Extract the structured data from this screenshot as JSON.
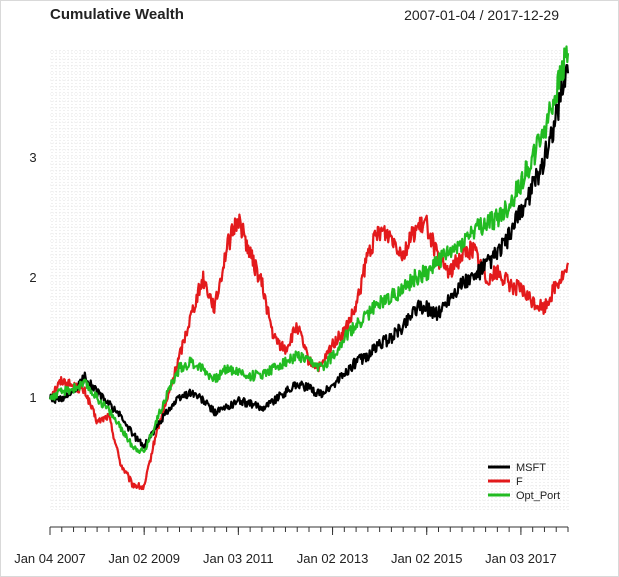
{
  "chart_data": {
    "type": "line",
    "title": "Cumulative Wealth",
    "date_range": "2007-01-04 / 2017-12-29",
    "x_start": 2007.0,
    "x_end": 2018.0,
    "ylim": [
      0.05,
      3.9
    ],
    "y_ticks": [
      1,
      2,
      3
    ],
    "y_tick_labels": [
      "1",
      "2",
      "3"
    ],
    "x_ticks": [
      2007.0,
      2009.0,
      2011.0,
      2013.0,
      2015.0,
      2017.0
    ],
    "x_tick_labels": [
      "Jan 04 2007",
      "Jan 02 2009",
      "Jan 03 2011",
      "Jan 02 2013",
      "Jan 02 2015",
      "Jan 03 2017"
    ],
    "legend_position": "bottom-right",
    "grid": true,
    "series": [
      {
        "name": "F",
        "color": "#e31a1c",
        "x": [
          2007.0,
          2007.25,
          2007.5,
          2007.75,
          2008.0,
          2008.25,
          2008.5,
          2008.75,
          2009.0,
          2009.25,
          2009.5,
          2009.75,
          2010.0,
          2010.25,
          2010.5,
          2010.75,
          2011.0,
          2011.25,
          2011.5,
          2011.75,
          2012.0,
          2012.25,
          2012.5,
          2012.75,
          2013.0,
          2013.25,
          2013.5,
          2013.75,
          2014.0,
          2014.25,
          2014.5,
          2014.75,
          2015.0,
          2015.25,
          2015.5,
          2015.75,
          2016.0,
          2016.25,
          2016.5,
          2016.75,
          2017.0,
          2017.25,
          2017.5,
          2017.75,
          2018.0
        ],
        "values": [
          1.02,
          1.15,
          1.1,
          1.05,
          0.8,
          0.85,
          0.45,
          0.28,
          0.25,
          0.7,
          1.0,
          1.35,
          1.7,
          2.0,
          1.75,
          2.25,
          2.5,
          2.2,
          1.95,
          1.5,
          1.4,
          1.6,
          1.3,
          1.25,
          1.45,
          1.55,
          1.75,
          2.2,
          2.4,
          2.35,
          2.2,
          2.4,
          2.45,
          2.15,
          2.05,
          2.2,
          2.25,
          2.0,
          2.05,
          1.95,
          1.9,
          1.8,
          1.75,
          1.95,
          2.07
        ]
      },
      {
        "name": "MSFT",
        "color": "#000000",
        "x": [
          2007.0,
          2007.25,
          2007.5,
          2007.75,
          2008.0,
          2008.25,
          2008.5,
          2008.75,
          2009.0,
          2009.25,
          2009.5,
          2009.75,
          2010.0,
          2010.25,
          2010.5,
          2010.75,
          2011.0,
          2011.25,
          2011.5,
          2011.75,
          2012.0,
          2012.25,
          2012.5,
          2012.75,
          2013.0,
          2013.25,
          2013.5,
          2013.75,
          2014.0,
          2014.25,
          2014.5,
          2014.75,
          2015.0,
          2015.25,
          2015.5,
          2015.75,
          2016.0,
          2016.25,
          2016.5,
          2016.75,
          2017.0,
          2017.25,
          2017.5,
          2017.75,
          2018.0
        ],
        "values": [
          1.0,
          0.98,
          1.05,
          1.18,
          1.05,
          0.95,
          0.85,
          0.7,
          0.6,
          0.75,
          0.9,
          1.0,
          1.05,
          0.98,
          0.88,
          0.92,
          0.98,
          0.95,
          0.92,
          0.98,
          1.05,
          1.12,
          1.08,
          1.03,
          1.1,
          1.2,
          1.3,
          1.35,
          1.45,
          1.5,
          1.6,
          1.75,
          1.75,
          1.7,
          1.85,
          1.95,
          2.0,
          2.1,
          2.2,
          2.35,
          2.55,
          2.75,
          3.0,
          3.35,
          3.8
        ]
      },
      {
        "name": "Opt_Port",
        "color": "#22bb22",
        "x": [
          2007.0,
          2007.25,
          2007.5,
          2007.75,
          2008.0,
          2008.25,
          2008.5,
          2008.75,
          2009.0,
          2009.25,
          2009.5,
          2009.75,
          2010.0,
          2010.25,
          2010.5,
          2010.75,
          2011.0,
          2011.25,
          2011.5,
          2011.75,
          2012.0,
          2012.25,
          2012.5,
          2012.75,
          2013.0,
          2013.25,
          2013.5,
          2013.75,
          2014.0,
          2014.25,
          2014.5,
          2014.75,
          2015.0,
          2015.25,
          2015.5,
          2015.75,
          2016.0,
          2016.25,
          2016.5,
          2016.75,
          2017.0,
          2017.25,
          2017.5,
          2017.75,
          2018.0
        ],
        "values": [
          1.0,
          1.05,
          1.08,
          1.12,
          1.0,
          0.9,
          0.75,
          0.6,
          0.55,
          0.8,
          1.05,
          1.25,
          1.3,
          1.25,
          1.15,
          1.25,
          1.22,
          1.18,
          1.2,
          1.25,
          1.3,
          1.35,
          1.3,
          1.25,
          1.35,
          1.5,
          1.6,
          1.7,
          1.8,
          1.85,
          1.9,
          2.0,
          2.05,
          2.15,
          2.2,
          2.3,
          2.4,
          2.45,
          2.5,
          2.6,
          2.8,
          3.0,
          3.25,
          3.55,
          3.9
        ]
      }
    ]
  }
}
